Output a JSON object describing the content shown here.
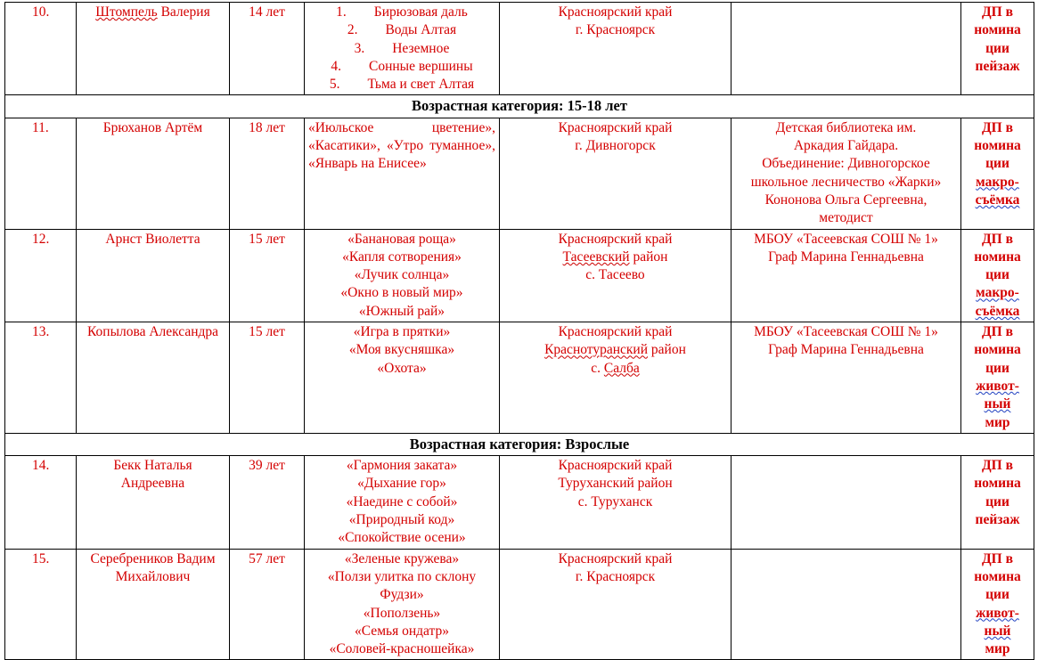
{
  "rows": [
    {
      "type": "entry",
      "num": "10.",
      "name": "Штомпель Валерия",
      "age": "14 лет",
      "works": [
        "1.  Бирюзовая даль",
        "2.  Воды Алтая",
        "3.  Неземное",
        "4.  Сонные вершины",
        "5.  Тьма и свет Алтая"
      ],
      "location": [
        "Красноярский край",
        "г. Красноярск"
      ],
      "org": [],
      "nomination": [
        "ДП в",
        "номина",
        "ции",
        "пейзаж"
      ]
    },
    {
      "type": "category",
      "label": "Возрастная категория: 15-18 лет"
    },
    {
      "type": "entry",
      "num": "11.",
      "name": "Брюханов Артём",
      "age": "18 лет",
      "works_text": "«Июльское цветение», «Касатики», «Утро туманное», «Январь на Енисее»",
      "location": [
        "Красноярский край",
        "г. Дивногорск"
      ],
      "org": [
        "Детская библиотека им.",
        "Аркадия Гайдара.",
        "Объединение: Дивногорское",
        "школьное лесничество «Жарки»",
        "Кононова Ольга Сергеевна,",
        "методист"
      ],
      "nomination": [
        "ДП в",
        "номина",
        "ции",
        "макро-",
        "съёмка"
      ]
    },
    {
      "type": "entry",
      "num": "12.",
      "name": "Арнст Виолетта",
      "age": "15 лет",
      "works": [
        "«Банановая роща»",
        "«Капля сотворения»",
        "«Лучик солнца»",
        "«Окно в новый мир»",
        "«Южный рай»"
      ],
      "location": [
        "Красноярский край",
        "Тасеевский район",
        "с. Тасеево"
      ],
      "org": [
        "МБОУ «Тасеевская СОШ № 1»",
        "Граф Марина Геннадьевна"
      ],
      "nomination": [
        "ДП в",
        "номина",
        "ции",
        "макро-",
        "съёмка"
      ]
    },
    {
      "type": "entry",
      "num": "13.",
      "name": "Копылова Александра",
      "age": "15 лет",
      "works": [
        "«Игра в прятки»",
        "«Моя вкусняшка»",
        "«Охота»"
      ],
      "location": [
        "Красноярский край",
        "Краснотуранский район",
        "с. Салба"
      ],
      "org": [
        "МБОУ «Тасеевская СОШ № 1»",
        "Граф Марина Геннадьевна"
      ],
      "nomination": [
        "ДП в",
        "номина",
        "ции",
        "живот-",
        "ный",
        "мир"
      ]
    },
    {
      "type": "category",
      "label": "Возрастная категория: Взрослые"
    },
    {
      "type": "entry",
      "num": "14.",
      "name": "Бекк Наталья Андреевна",
      "age": "39 лет",
      "works": [
        "«Гармония заката»",
        "«Дыхание гор»",
        "«Наедине с собой»",
        "«Природный код»",
        "«Спокойствие осени»"
      ],
      "location": [
        "Красноярский край",
        "Туруханский район",
        "с. Туруханск"
      ],
      "org": [],
      "nomination": [
        "ДП в",
        "номина",
        "ции",
        "пейзаж"
      ]
    },
    {
      "type": "entry",
      "num": "15.",
      "name": "Серебреников Вадим Михайлович",
      "age": "57 лет",
      "works": [
        "«Зеленые кружева»",
        "«Ползи улитка по склону Фудзи»",
        "«Поползень»",
        "«Семья ондатр»",
        "«Соловей-красношейка»"
      ],
      "location": [
        "Красноярский край",
        "г. Красноярск"
      ],
      "org": [],
      "nomination": [
        "ДП в",
        "номина",
        "ции",
        "живот-",
        "ный",
        "мир"
      ]
    }
  ],
  "colors": {
    "text": "#d40000",
    "border": "#000000"
  }
}
